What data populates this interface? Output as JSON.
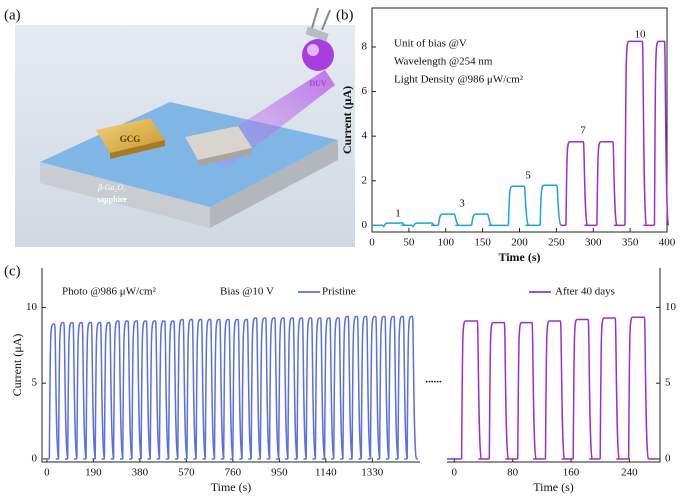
{
  "panel_labels": [
    "(a)",
    "(b)",
    "(c)"
  ],
  "illustration": {
    "pad_label": "GCG",
    "layer": "β-Ga₂O₃",
    "substrate": "sapphire",
    "source": "DUV"
  },
  "chart_data": [
    {
      "type": "line",
      "xlabel": "Time (s)",
      "ylabel": "Current (μA)",
      "xlim": [
        0,
        400
      ],
      "xticks": [
        0,
        50,
        100,
        150,
        200,
        250,
        300,
        350,
        400
      ],
      "ylim": [
        -0.3,
        9.75
      ],
      "yticks": [
        0,
        2,
        4,
        6,
        8
      ],
      "notes": [
        "Unit of bias  @V",
        "Wavelength  @254 nm",
        "Light Density @986 μW/cm²"
      ],
      "annotations": [
        "1",
        "3",
        "5",
        "7",
        "10"
      ],
      "series": [
        {
          "color": "#1aa3e0",
          "on": [
            15,
            55,
            90,
            135,
            185,
            228
          ],
          "off": [
            40,
            80,
            113,
            158,
            208,
            252
          ],
          "values": [
            0.1,
            0.1,
            0.5,
            0.5,
            1.75,
            1.8
          ]
        },
        {
          "color": "#9b30c8",
          "on": [
            263,
            305,
            343,
            383
          ],
          "off": [
            288,
            328,
            368,
            398
          ],
          "values": [
            3.75,
            3.75,
            8.25,
            8.25
          ]
        }
      ]
    },
    {
      "type": "line",
      "xlabel": "Time (s)",
      "x2label": "Time (s)",
      "ylabel": "Current (μA)",
      "xlim": [
        -20,
        1525
      ],
      "xticks": [
        0,
        190,
        380,
        570,
        760,
        950,
        1140,
        1330
      ],
      "x2lim": [
        -10,
        282
      ],
      "x2ticks": [
        0,
        80,
        160,
        240
      ],
      "ylim": [
        -0.2,
        12.6
      ],
      "yticks": [
        0,
        5,
        10
      ],
      "y2lim": [
        -0.2,
        12.6
      ],
      "y2ticks": [
        0,
        5,
        10
      ],
      "notes": [
        "Photo @986 μW/cm²",
        "Bias @10 V"
      ],
      "separator": "......",
      "series": [
        {
          "name": "Pristine",
          "color": "#5b6fe0",
          "on": [
            10,
            47.5,
            85,
            122.5,
            160,
            197.5,
            235,
            272.5,
            310,
            347.5,
            385,
            422.5,
            460,
            497.5,
            535,
            572.5,
            610,
            647.5,
            685,
            722.5,
            760,
            797.5,
            835,
            872.5,
            910,
            947.5,
            985,
            1022.5,
            1060,
            1097.5,
            1135,
            1172.5,
            1210,
            1247.5,
            1285,
            1322.5,
            1360,
            1397.5,
            1435,
            1472.5
          ],
          "off": [
            36,
            73.5,
            111,
            148.5,
            186,
            223.5,
            261,
            298.5,
            336,
            373.5,
            411,
            448.5,
            486,
            523.5,
            561,
            598.5,
            636,
            673.5,
            711,
            748.5,
            786,
            823.5,
            861,
            898.5,
            936,
            973.5,
            1011,
            1048.5,
            1086,
            1123.5,
            1161,
            1198.5,
            1236,
            1273.5,
            1311,
            1348.5,
            1386,
            1423.5,
            1461,
            1498.5
          ],
          "values": [
            8.9,
            9.0,
            9.0,
            9.0,
            9.0,
            9.0,
            9.0,
            9.1,
            9.1,
            9.1,
            9.1,
            9.1,
            9.1,
            9.1,
            9.2,
            9.2,
            9.2,
            9.2,
            9.2,
            9.2,
            9.2,
            9.2,
            9.3,
            9.3,
            9.3,
            9.3,
            9.3,
            9.3,
            9.3,
            9.3,
            9.3,
            9.3,
            9.4,
            9.4,
            9.4,
            9.4,
            9.4,
            9.4,
            9.4,
            9.4
          ]
        },
        {
          "name": "After 40 days",
          "color": "#9b30c8",
          "axis": "x2",
          "on": [
            10,
            48,
            87,
            125,
            163,
            200,
            239
          ],
          "off": [
            33,
            70,
            108,
            147,
            185,
            222,
            262
          ],
          "values": [
            9.1,
            9.0,
            9.0,
            9.1,
            9.2,
            9.3,
            9.35
          ]
        }
      ]
    }
  ]
}
